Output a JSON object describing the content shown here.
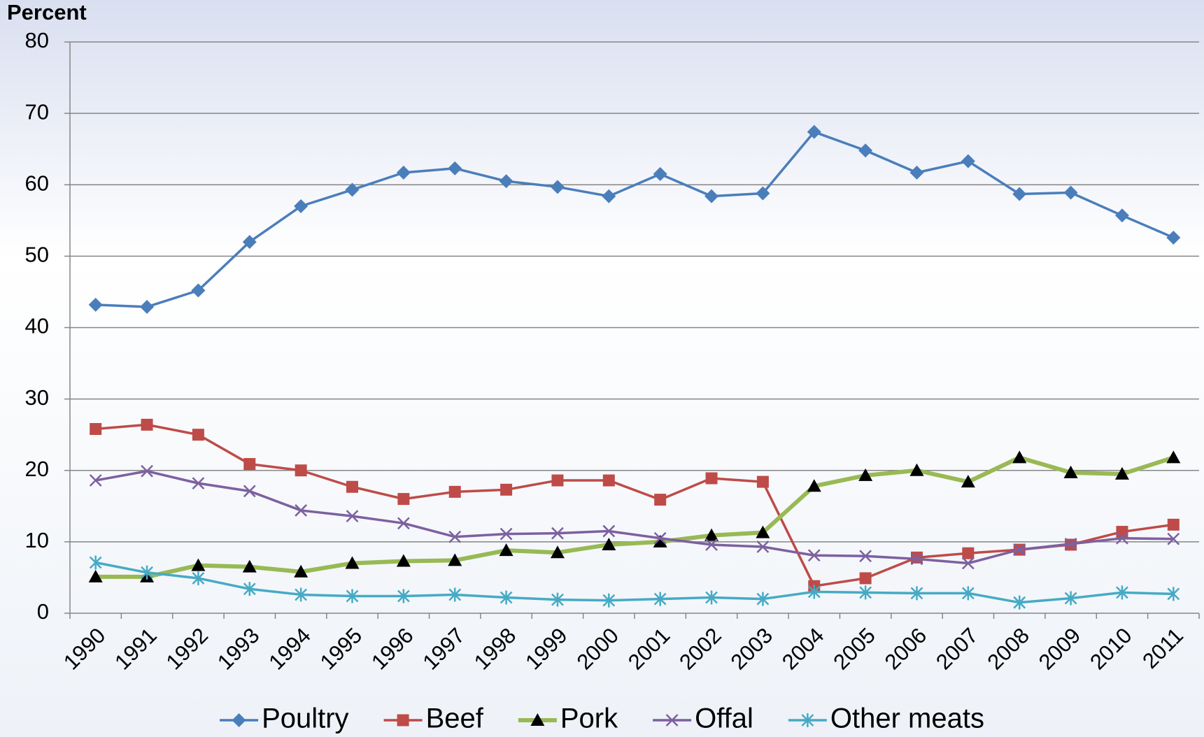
{
  "chart_data": {
    "type": "line",
    "y_label": "Percent",
    "categories": [
      "1990",
      "1991",
      "1992",
      "1993",
      "1994",
      "1995",
      "1996",
      "1997",
      "1998",
      "1999",
      "2000",
      "2001",
      "2002",
      "2003",
      "2004",
      "2005",
      "2006",
      "2007",
      "2008",
      "2009",
      "2010",
      "2011"
    ],
    "ylim": [
      0,
      80
    ],
    "yticks": [
      0,
      10,
      20,
      30,
      40,
      50,
      60,
      70,
      80
    ],
    "grid": true,
    "series": [
      {
        "name": "Poultry",
        "color": "#4a7ebb",
        "marker": "diamond",
        "values": [
          43.2,
          42.9,
          45.2,
          52.0,
          57.0,
          59.3,
          61.7,
          62.3,
          60.5,
          59.7,
          58.4,
          61.5,
          58.4,
          58.8,
          67.4,
          64.8,
          61.7,
          63.3,
          58.7,
          58.9,
          55.7,
          52.6
        ]
      },
      {
        "name": "Beef",
        "color": "#be4b48",
        "marker": "square",
        "values": [
          25.8,
          26.4,
          25.0,
          20.9,
          20.0,
          17.7,
          16.0,
          17.0,
          17.3,
          18.6,
          18.6,
          15.9,
          18.9,
          18.4,
          3.8,
          4.9,
          7.8,
          8.4,
          8.9,
          9.6,
          11.4,
          12.4
        ]
      },
      {
        "name": "Pork",
        "color": "#98b954",
        "marker": "triangle",
        "values": [
          5.1,
          5.1,
          6.7,
          6.5,
          5.8,
          7.0,
          7.3,
          7.4,
          8.8,
          8.5,
          9.6,
          10.0,
          10.9,
          11.3,
          17.8,
          19.3,
          20.0,
          18.4,
          21.8,
          19.7,
          19.5,
          21.8
        ]
      },
      {
        "name": "Offal",
        "color": "#7d60a0",
        "marker": "x",
        "values": [
          18.6,
          19.9,
          18.2,
          17.1,
          14.4,
          13.6,
          12.6,
          10.7,
          11.1,
          11.2,
          11.5,
          10.5,
          9.6,
          9.3,
          8.1,
          8.0,
          7.6,
          7.0,
          8.9,
          9.7,
          10.5,
          10.4
        ]
      },
      {
        "name": "Other meats",
        "color": "#46aac5",
        "marker": "star",
        "values": [
          7.1,
          5.7,
          4.9,
          3.4,
          2.6,
          2.4,
          2.4,
          2.6,
          2.2,
          1.9,
          1.8,
          2.0,
          2.2,
          2.0,
          3.0,
          2.9,
          2.8,
          2.8,
          1.5,
          2.1,
          2.9,
          2.7
        ]
      }
    ]
  }
}
